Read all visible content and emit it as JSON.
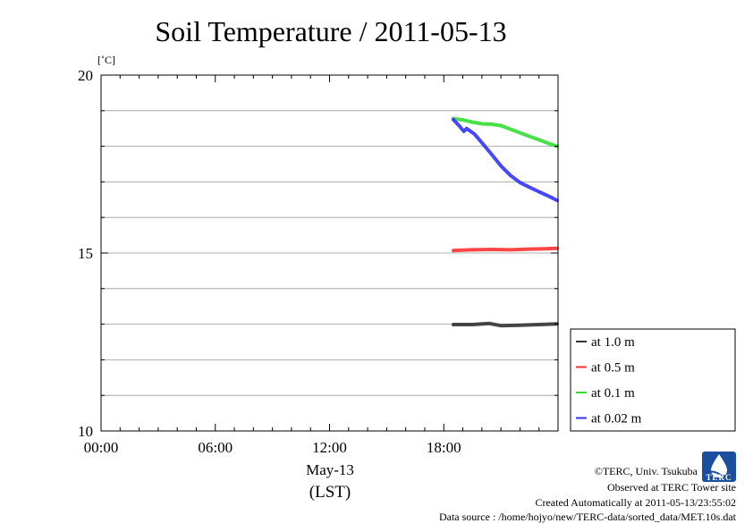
{
  "chart_data": {
    "type": "line",
    "title": "Soil Temperature / 2011-05-13",
    "ylabel": "[˚C]",
    "xlabel": "May-13",
    "xlabel2": "(LST)",
    "ylim": [
      10,
      20
    ],
    "xlim_hours": [
      0,
      24
    ],
    "y_ticks": [
      {
        "value": 10,
        "label": "10"
      },
      {
        "value": 15,
        "label": "15"
      },
      {
        "value": 20,
        "label": "20"
      }
    ],
    "y_minor_ticks": [
      11,
      12,
      13,
      14,
      16,
      17,
      18,
      19
    ],
    "x_ticks": [
      {
        "value": 0,
        "label": "00:00"
      },
      {
        "value": 6,
        "label": "06:00"
      },
      {
        "value": 12,
        "label": "12:00"
      },
      {
        "value": 18,
        "label": "18:00"
      }
    ],
    "grid": true,
    "legend_position": "bottom-right outside",
    "series": [
      {
        "name": "at 1.0 m",
        "color": "#333333",
        "x": [
          18.5,
          19.5,
          20.4,
          21.0,
          22.0,
          23.0,
          23.95
        ],
        "y": [
          12.99,
          12.99,
          13.02,
          12.96,
          12.97,
          12.99,
          13.01
        ]
      },
      {
        "name": "at 0.5 m",
        "color": "#ff3333",
        "x": [
          18.5,
          19.5,
          20.5,
          21.5,
          22.5,
          23.3,
          23.95
        ],
        "y": [
          15.07,
          15.09,
          15.1,
          15.09,
          15.11,
          15.12,
          15.13
        ]
      },
      {
        "name": "at 0.1 m",
        "color": "#33dd33",
        "x": [
          18.5,
          19.0,
          19.5,
          20.0,
          20.5,
          21.0,
          21.5,
          22.0,
          22.5,
          23.0,
          23.5,
          23.95
        ],
        "y": [
          18.78,
          18.74,
          18.68,
          18.63,
          18.62,
          18.58,
          18.48,
          18.38,
          18.28,
          18.18,
          18.08,
          18.0
        ]
      },
      {
        "name": "at 0.02 m",
        "color": "#3333ff",
        "x": [
          18.5,
          18.8,
          19.05,
          19.2,
          19.6,
          20.0,
          20.5,
          21.0,
          21.5,
          22.0,
          22.5,
          23.0,
          23.5,
          23.95
        ],
        "y": [
          18.75,
          18.58,
          18.42,
          18.5,
          18.35,
          18.1,
          17.78,
          17.45,
          17.18,
          16.98,
          16.85,
          16.72,
          16.6,
          16.48
        ]
      }
    ]
  },
  "credits": {
    "copyright": "©TERC, Univ. Tsukuba",
    "site": "Observed at TERC Tower site",
    "created": "Created Automatically at 2011-05-13/23:55:02",
    "source": "Data source : /home/hojyo/new/TERC-data/sorted_data/MET.10s.dat"
  },
  "logo": {
    "text": "TERC",
    "color": "#1a4fa0"
  }
}
